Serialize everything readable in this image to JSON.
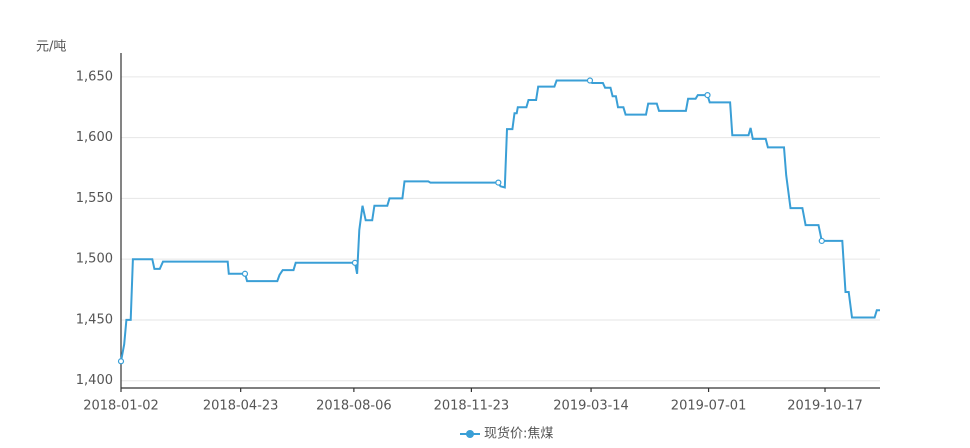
{
  "chart_data": {
    "type": "line",
    "y_unit": "元/吨",
    "x": [
      "2018-01-02",
      "2018-01-05",
      "2018-01-07",
      "2018-01-11",
      "2018-01-13",
      "2018-01-31",
      "2018-02-02",
      "2018-02-07",
      "2018-02-10",
      "2018-04-11",
      "2018-04-12",
      "2018-04-27",
      "2018-04-29",
      "2018-05-27",
      "2018-05-29",
      "2018-06-01",
      "2018-06-11",
      "2018-06-13",
      "2018-08-07",
      "2018-08-09",
      "2018-08-11",
      "2018-08-14",
      "2018-08-17",
      "2018-08-23",
      "2018-08-25",
      "2018-09-06",
      "2018-09-08",
      "2018-09-20",
      "2018-09-22",
      "2018-10-14",
      "2018-10-16",
      "2018-12-18",
      "2018-12-20",
      "2018-12-24",
      "2018-12-26",
      "2018-12-31",
      "2019-01-02",
      "2019-01-04",
      "2019-01-05",
      "2019-01-13",
      "2019-01-15",
      "2019-01-22",
      "2019-01-24",
      "2019-02-08",
      "2019-02-10",
      "2019-03-13",
      "2019-03-15",
      "2019-03-25",
      "2019-03-27",
      "2019-04-01",
      "2019-04-03",
      "2019-04-06",
      "2019-04-08",
      "2019-04-13",
      "2019-04-15",
      "2019-05-04",
      "2019-05-06",
      "2019-05-14",
      "2019-05-16",
      "2019-06-10",
      "2019-06-12",
      "2019-06-19",
      "2019-06-21",
      "2019-06-30",
      "2019-07-02",
      "2019-07-21",
      "2019-07-23",
      "2019-08-07",
      "2019-08-09",
      "2019-08-11",
      "2019-08-23",
      "2019-08-25",
      "2019-09-09",
      "2019-09-11",
      "2019-09-15",
      "2019-09-26",
      "2019-09-29",
      "2019-10-11",
      "2019-10-14",
      "2019-11-02",
      "2019-11-05",
      "2019-11-08",
      "2019-11-11",
      "2019-12-02",
      "2019-12-04",
      "2019-12-07"
    ],
    "series": [
      {
        "name": "现货价:焦煤",
        "color": "#3a9fd6",
        "values": [
          1416,
          1430,
          1450,
          1450,
          1500,
          1500,
          1492,
          1492,
          1498,
          1498,
          1488,
          1488,
          1482,
          1482,
          1487,
          1491,
          1491,
          1497,
          1497,
          1488,
          1524,
          1544,
          1532,
          1532,
          1544,
          1544,
          1550,
          1550,
          1564,
          1564,
          1563,
          1563,
          1560,
          1559,
          1607,
          1607,
          1620,
          1620,
          1625,
          1625,
          1631,
          1631,
          1642,
          1642,
          1647,
          1647,
          1645,
          1645,
          1641,
          1641,
          1634,
          1634,
          1625,
          1625,
          1619,
          1619,
          1628,
          1628,
          1622,
          1622,
          1632,
          1632,
          1635,
          1635,
          1629,
          1629,
          1602,
          1602,
          1608,
          1599,
          1599,
          1592,
          1592,
          1569,
          1542,
          1542,
          1528,
          1528,
          1515,
          1515,
          1473,
          1473,
          1452,
          1452,
          1458,
          1458
        ]
      }
    ],
    "xlim": [
      "2018-01-02",
      "2019-12-07"
    ],
    "xticks": [
      "2018-01-02",
      "2018-04-23",
      "2018-08-06",
      "2018-11-23",
      "2019-03-14",
      "2019-07-01",
      "2019-10-17"
    ],
    "ylim": [
      1394,
      1668
    ],
    "yticks": [
      {
        "value": 1400,
        "label": "1,400"
      },
      {
        "value": 1450,
        "label": "1,450"
      },
      {
        "value": 1500,
        "label": "1,500"
      },
      {
        "value": 1550,
        "label": "1,550"
      },
      {
        "value": 1600,
        "label": "1,600"
      },
      {
        "value": 1650,
        "label": "1,650"
      }
    ],
    "grid": true
  }
}
